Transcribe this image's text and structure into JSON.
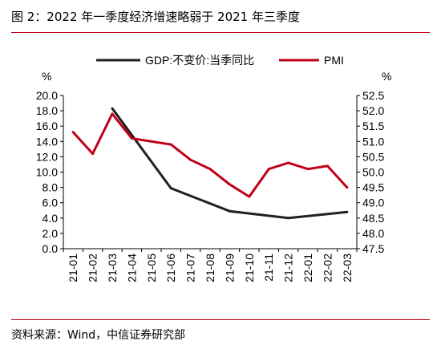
{
  "figure": {
    "title": "图 2：2022 年一季度经济增速略弱于 2021 年三季度",
    "source": "资料来源：Wind，中信证券研究部"
  },
  "chart_data": {
    "type": "line",
    "categories": [
      "21-01",
      "21-02",
      "21-03",
      "21-04",
      "21-05",
      "21-06",
      "21-07",
      "21-08",
      "21-09",
      "21-10",
      "21-11",
      "21-12",
      "22-01",
      "22-02",
      "22-03"
    ],
    "left_axis": {
      "unit": "%",
      "ylim": [
        0,
        20
      ],
      "ticks": [
        "0.0",
        "2.0",
        "4.0",
        "6.0",
        "8.0",
        "10.0",
        "12.0",
        "14.0",
        "16.0",
        "18.0",
        "20.0"
      ]
    },
    "right_axis": {
      "unit": "%",
      "ylim": [
        47.5,
        52.5
      ],
      "ticks": [
        "47.5",
        "48.0",
        "48.5",
        "49.0",
        "49.5",
        "50.0",
        "50.5",
        "51.0",
        "51.5",
        "52.0",
        "52.5"
      ]
    },
    "legend_position": "top",
    "grid": false,
    "series": [
      {
        "name": "GDP:不变价:当季同比",
        "axis": "left",
        "color": "#231f20",
        "values": [
          null,
          null,
          18.3,
          null,
          null,
          7.9,
          null,
          null,
          4.9,
          null,
          null,
          4.0,
          null,
          null,
          4.8
        ]
      },
      {
        "name": "PMI",
        "axis": "right",
        "color": "#c00018",
        "values": [
          51.3,
          50.6,
          51.9,
          51.1,
          51.0,
          50.9,
          50.4,
          50.1,
          49.6,
          49.2,
          50.1,
          50.3,
          50.1,
          50.2,
          49.5
        ]
      }
    ]
  }
}
